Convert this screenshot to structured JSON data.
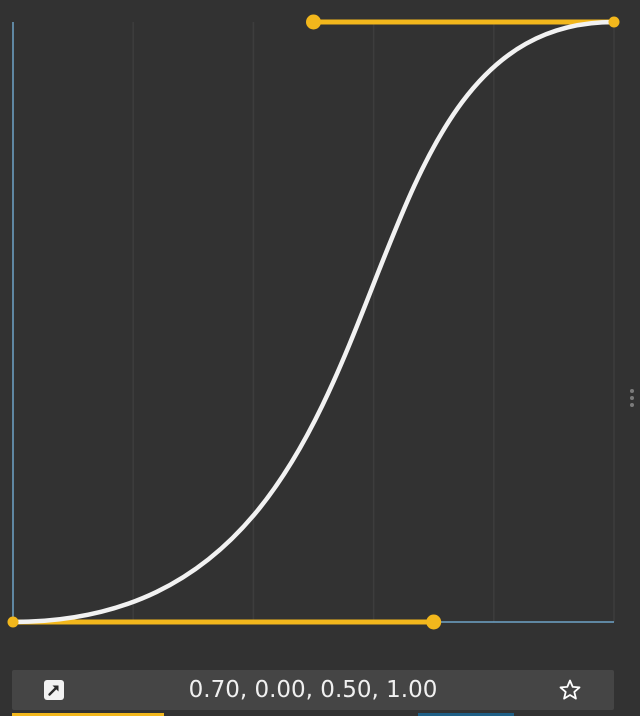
{
  "curve_editor": {
    "cubic_bezier": [
      0.7,
      0.0,
      0.5,
      1.0
    ],
    "grid_columns": 5,
    "curve_color": "#f2f2f2",
    "handle_color": "#f2b71c",
    "axis_color": "#6ea3c8",
    "grid_color": "#3d3d3d",
    "background_color": "#323232"
  },
  "bottom_bar": {
    "values_text": "0.70, 0.00, 0.50, 1.00",
    "edit_icon": "edit-curve-icon",
    "favorite_icon": "star-outline-icon"
  },
  "indicators": {
    "active_color": "#f2b71c",
    "secondary_color": "#1f5f86"
  }
}
